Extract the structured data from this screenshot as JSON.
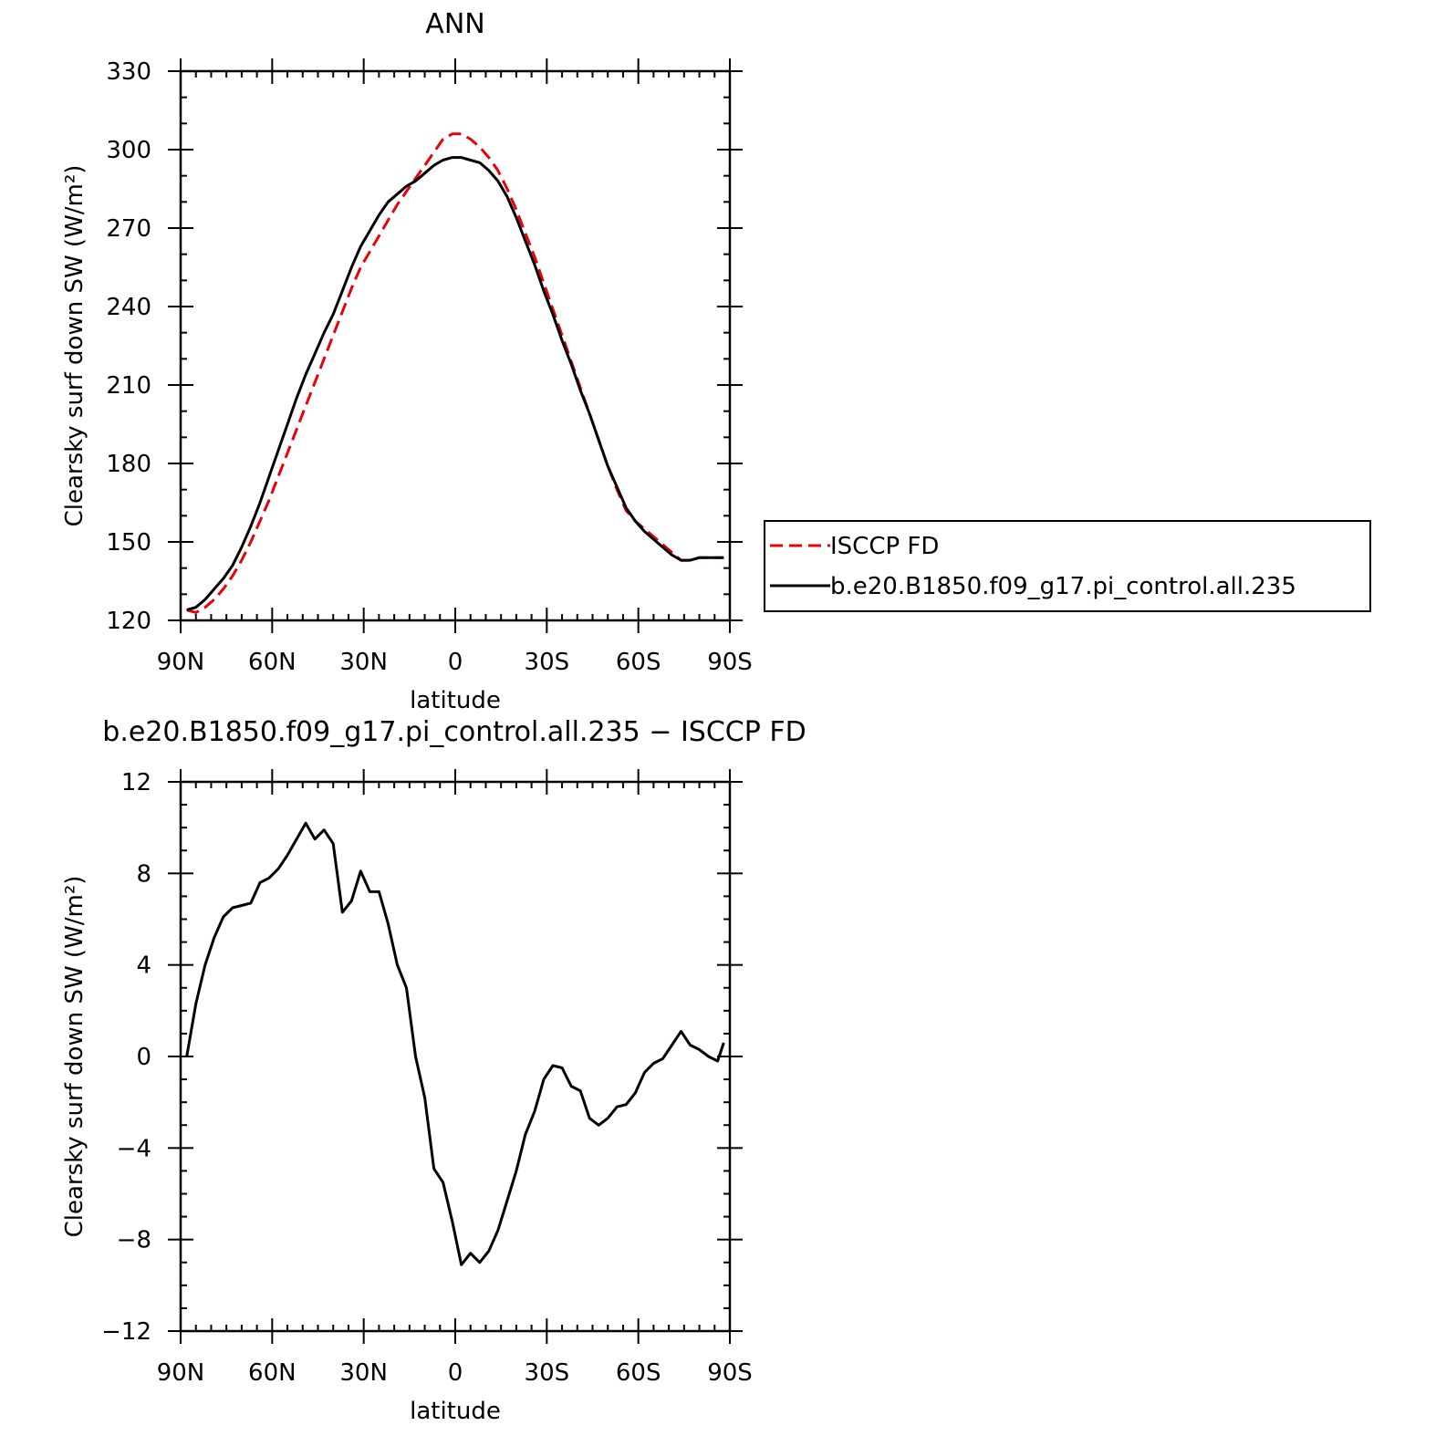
{
  "chart_data": [
    {
      "type": "line",
      "title": "ANN",
      "xlabel": "latitude",
      "ylabel": "Clearsky surf down SW (W/m²)",
      "ylim": [
        120,
        330
      ],
      "xlim": [
        90,
        -90
      ],
      "x_tick_values": [
        90,
        60,
        30,
        0,
        -30,
        -60,
        -90
      ],
      "x_tick_labels": [
        "90N",
        "60N",
        "30N",
        "0",
        "30S",
        "60S",
        "90S"
      ],
      "y_ticks": [
        120,
        150,
        180,
        210,
        240,
        270,
        300,
        330
      ],
      "grid": false,
      "legend_position": "right",
      "x": [
        88,
        85,
        82,
        79,
        76,
        73,
        70,
        67,
        64,
        61,
        58,
        55,
        52,
        49,
        46,
        43,
        40,
        37,
        34,
        31,
        28,
        25,
        22,
        19,
        16,
        13,
        10,
        7,
        4,
        1,
        -2,
        -5,
        -8,
        -11,
        -14,
        -17,
        -20,
        -23,
        -26,
        -29,
        -32,
        -35,
        -38,
        -41,
        -44,
        -47,
        -50,
        -53,
        -56,
        -59,
        -62,
        -65,
        -68,
        -71,
        -74,
        -77,
        -80,
        -83,
        -86,
        -88
      ],
      "series": [
        {
          "name": "ISCCP FD",
          "color": "#e8000b",
          "dash": "dashed",
          "values": [
            124,
            123,
            125,
            128,
            132,
            137,
            143,
            150,
            158,
            166,
            175,
            184,
            193,
            202,
            211,
            220,
            229,
            238,
            247,
            255,
            261,
            267,
            273,
            279,
            284,
            289,
            294,
            299,
            304,
            306,
            306,
            304,
            301,
            297,
            292,
            285,
            277,
            268,
            259,
            249,
            239,
            229,
            219,
            209,
            199,
            189,
            179,
            170,
            162,
            158,
            155,
            152,
            149,
            146,
            143,
            143,
            144,
            144,
            144,
            144
          ]
        },
        {
          "name": "b.e20.B1850.f09_g17.pi_control.all.235",
          "color": "#000000",
          "dash": "solid",
          "values": [
            124,
            125,
            128,
            132,
            136,
            141,
            148,
            156,
            165,
            175,
            185,
            195,
            205,
            214,
            222,
            230,
            237,
            246,
            255,
            263,
            269,
            275,
            280,
            283,
            286,
            288,
            291,
            294,
            296,
            297,
            297,
            296,
            295,
            292,
            288,
            282,
            274,
            265,
            256,
            246,
            237,
            227,
            218,
            208,
            199,
            189,
            179,
            171,
            163,
            158,
            154,
            151,
            148,
            145,
            143,
            143,
            144,
            144,
            144,
            144
          ]
        }
      ]
    },
    {
      "type": "line",
      "title": "b.e20.B1850.f09_g17.pi_control.all.235 − ISCCP FD",
      "xlabel": "latitude",
      "ylabel": "Clearsky surf down SW (W/m²)",
      "ylim": [
        -12,
        12
      ],
      "xlim": [
        90,
        -90
      ],
      "x_tick_values": [
        90,
        60,
        30,
        0,
        -30,
        -60,
        -90
      ],
      "x_tick_labels": [
        "90N",
        "60N",
        "30N",
        "0",
        "30S",
        "60S",
        "90S"
      ],
      "y_ticks": [
        -12,
        -8,
        -4,
        0,
        4,
        8,
        12
      ],
      "y_tick_labels": [
        "−12",
        "−8",
        "−4",
        "0",
        "4",
        "8",
        "12"
      ],
      "grid": false,
      "x": [
        88,
        85,
        82,
        79,
        76,
        73,
        70,
        67,
        64,
        61,
        58,
        55,
        52,
        49,
        46,
        43,
        40,
        37,
        34,
        31,
        28,
        25,
        22,
        19,
        16,
        13,
        10,
        7,
        4,
        1,
        -2,
        -5,
        -8,
        -11,
        -14,
        -17,
        -20,
        -23,
        -26,
        -29,
        -32,
        -35,
        -38,
        -41,
        -44,
        -47,
        -50,
        -53,
        -56,
        -59,
        -62,
        -65,
        -68,
        -71,
        -74,
        -77,
        -80,
        -83,
        -86,
        -88
      ],
      "series": [
        {
          "name": "",
          "color": "#000000",
          "values": [
            0,
            2.3,
            4.0,
            5.2,
            6.1,
            6.5,
            6.6,
            6.7,
            7.6,
            7.8,
            8.2,
            8.8,
            9.5,
            10.2,
            9.5,
            9.9,
            9.3,
            6.3,
            6.8,
            8.1,
            7.2,
            7.2,
            5.8,
            4.0,
            3.0,
            0.0,
            -1.8,
            -4.9,
            -5.5,
            -7.2,
            -9.1,
            -8.6,
            -9.0,
            -8.5,
            -7.6,
            -6.3,
            -5.0,
            -3.4,
            -2.4,
            -1.0,
            -0.4,
            -0.5,
            -1.3,
            -1.5,
            -2.7,
            -3.0,
            -2.7,
            -2.2,
            -2.1,
            -1.6,
            -0.7,
            -0.3,
            -0.1,
            0.5,
            1.1,
            0.5,
            0.3,
            0.0,
            -0.2,
            0.6
          ]
        }
      ]
    }
  ]
}
